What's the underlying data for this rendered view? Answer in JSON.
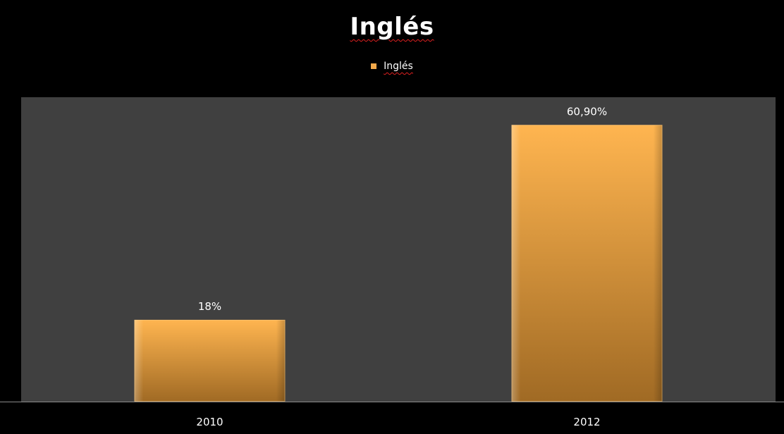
{
  "chart_data": {
    "type": "bar",
    "title": "Inglés",
    "legend": [
      "Inglés"
    ],
    "legend_position": "top",
    "categories": [
      "2010",
      "2012"
    ],
    "series": [
      {
        "name": "Inglés",
        "values": [
          18,
          60.9
        ],
        "data_labels": [
          "18%",
          "60,90%"
        ]
      }
    ],
    "ylim": [
      0,
      67
    ],
    "grid": false,
    "colors": {
      "background": "#000000",
      "plot_area": "#404040",
      "bar_top": "#ffb550",
      "bar_bottom": "#a06a24",
      "text": "#ffffff"
    }
  }
}
